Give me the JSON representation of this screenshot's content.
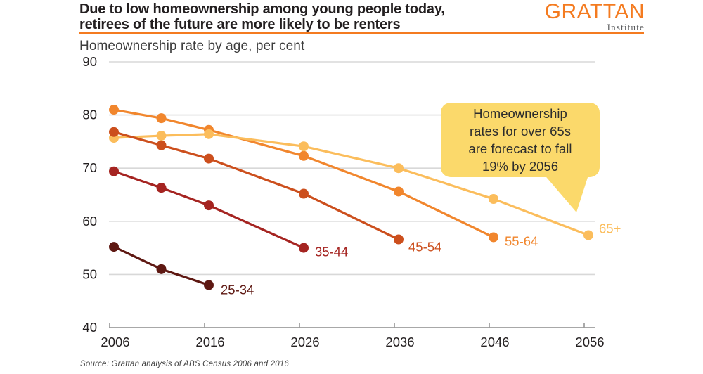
{
  "header": {
    "title": "Due to low homeownership among young people today,\nretirees of the future are more likely to be renters",
    "subtitle": "Homeownership rate by age, per cent",
    "accent_color": "#F47B20",
    "logo": {
      "name": "GRATTAN",
      "subtitle": "Institute",
      "color": "#F47B20"
    }
  },
  "annotation": {
    "text": "Homeownership\nrates for over 65s\nare forecast to fall\n19% by 2056",
    "bg_color": "#FBD96B",
    "text_color": "#2D2D2D"
  },
  "source": "Source: Grattan analysis of ABS Census 2006 and 2016",
  "chart_data": {
    "type": "line",
    "title": "Homeownership rate by age, per cent",
    "xlabel": "",
    "ylabel": "Homeownership rate, per cent",
    "xticks": [
      2006,
      2016,
      2026,
      2036,
      2046,
      2056
    ],
    "yticks": [
      40,
      50,
      60,
      70,
      80,
      90
    ],
    "xlim": [
      2005.5,
      2057
    ],
    "ylim": [
      40,
      90
    ],
    "grid": "horizontal",
    "legend": "end-of-line labels",
    "grid_color": "#D8D8D8",
    "axis_color": "#9B9B9B",
    "tick_label_color": "#231F20",
    "series": [
      {
        "name": "25-34",
        "color": "#5E1812",
        "points": [
          [
            2006,
            55.2
          ],
          [
            2011,
            51.0
          ],
          [
            2016,
            48.0
          ]
        ]
      },
      {
        "name": "35-44",
        "color": "#A52421",
        "points": [
          [
            2006,
            69.4
          ],
          [
            2011,
            66.3
          ],
          [
            2016,
            63.0
          ],
          [
            2026,
            55.0
          ]
        ]
      },
      {
        "name": "45-54",
        "color": "#CC4F1D",
        "points": [
          [
            2006,
            76.8
          ],
          [
            2011,
            74.3
          ],
          [
            2016,
            71.8
          ],
          [
            2026,
            65.2
          ],
          [
            2036,
            56.6
          ]
        ]
      },
      {
        "name": "55-64",
        "color": "#F1862D",
        "points": [
          [
            2006,
            81.0
          ],
          [
            2011,
            79.4
          ],
          [
            2016,
            77.2
          ],
          [
            2026,
            72.3
          ],
          [
            2036,
            65.6
          ],
          [
            2046,
            57.0
          ]
        ]
      },
      {
        "name": "65+",
        "color": "#FBBD5C",
        "points": [
          [
            2006,
            75.7
          ],
          [
            2011,
            76.1
          ],
          [
            2016,
            76.4
          ],
          [
            2026,
            74.1
          ],
          [
            2036,
            70.0
          ],
          [
            2046,
            64.2
          ],
          [
            2056,
            57.4
          ]
        ]
      }
    ]
  }
}
